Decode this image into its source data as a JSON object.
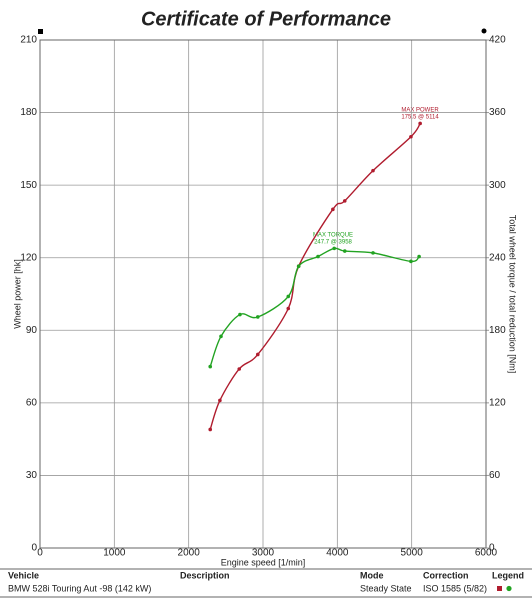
{
  "chart_data": {
    "type": "line",
    "title": "Certificate of Performance",
    "x_label": "Engine speed [1/min]",
    "y_label": "Wheel power [hk]",
    "y2_label": "Total wheel torque / total reduction [Nm]",
    "xlim": [
      0,
      6000
    ],
    "xticks": [
      0,
      1000,
      2000,
      3000,
      4000,
      5000,
      6000
    ],
    "ylim": [
      0,
      210
    ],
    "yticks": [
      0,
      30,
      60,
      90,
      120,
      150,
      180,
      210
    ],
    "y2lim": [
      0,
      420
    ],
    "y2ticks": [
      0,
      60,
      120,
      180,
      240,
      300,
      360,
      420
    ],
    "grid": true,
    "series": [
      {
        "name": "Wheel power",
        "color": "#b01c2e",
        "x": [
          2290,
          2420,
          2680,
          2930,
          3340,
          3480,
          3940,
          4100,
          4480,
          4990,
          5114
        ],
        "values": [
          49,
          61,
          74,
          80,
          99,
          116.5,
          140,
          143.5,
          156,
          170,
          175.5
        ]
      },
      {
        "name": "Wheel torque",
        "color": "#22a322",
        "axis": "y2",
        "x": [
          2290,
          2435,
          2690,
          2930,
          3340,
          3480,
          3740,
          3958,
          4100,
          4480,
          4990,
          5100
        ],
        "values": [
          150,
          175,
          193,
          191,
          208,
          233,
          241,
          247.7,
          245.5,
          244,
          237,
          241
        ]
      }
    ],
    "annotations": [
      {
        "label": "MAX POWER",
        "text": "175.5 @ 5114"
      },
      {
        "label": "MAX TORQUE",
        "text": "247.7 @ 3958"
      }
    ]
  },
  "footer": {
    "headers": [
      "Vehicle",
      "Description",
      "Mode",
      "Correction",
      "Legend"
    ],
    "vehicle": "BMW 528i Touring Aut -98 (142 kW)",
    "mode": "Steady State",
    "correction": "ISO 1585 (5/82)"
  }
}
